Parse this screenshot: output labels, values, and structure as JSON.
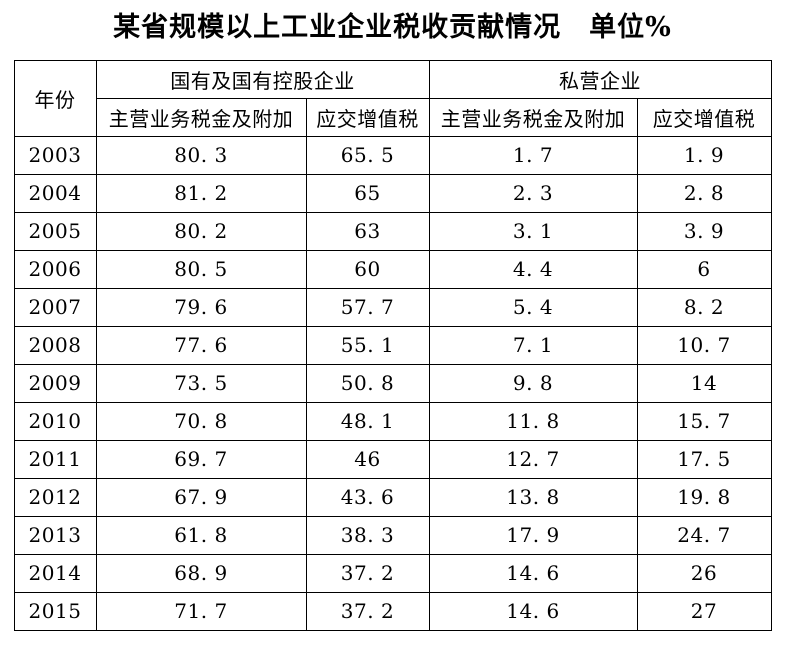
{
  "title": "某省规模以上工业企业税收贡献情况　单位%",
  "chart_data": {
    "type": "table",
    "title": "某省规模以上工业企业税收贡献情况",
    "unit_label": "单位%",
    "header": {
      "year": "年份",
      "groups": [
        {
          "label": "国有及国有控股企业",
          "subcolumns": [
            "主营业务税金及附加",
            "应交增值税"
          ]
        },
        {
          "label": "私营企业",
          "subcolumns": [
            "主营业务税金及附加",
            "应交增值税"
          ]
        }
      ]
    },
    "columns": [
      "年份",
      "国有及国有控股企业-主营业务税金及附加",
      "国有及国有控股企业-应交增值税",
      "私营企业-主营业务税金及附加",
      "私营企业-应交增值税"
    ],
    "rows": [
      {
        "year": "2003",
        "values": [
          80.3,
          65.5,
          1.7,
          1.9
        ]
      },
      {
        "year": "2004",
        "values": [
          81.2,
          65,
          2.3,
          2.8
        ]
      },
      {
        "year": "2005",
        "values": [
          80.2,
          63,
          3.1,
          3.9
        ]
      },
      {
        "year": "2006",
        "values": [
          80.5,
          60,
          4.4,
          6
        ]
      },
      {
        "year": "2007",
        "values": [
          79.6,
          57.7,
          5.4,
          8.2
        ]
      },
      {
        "year": "2008",
        "values": [
          77.6,
          55.1,
          7.1,
          10.7
        ]
      },
      {
        "year": "2009",
        "values": [
          73.5,
          50.8,
          9.8,
          14
        ]
      },
      {
        "year": "2010",
        "values": [
          70.8,
          48.1,
          11.8,
          15.7
        ]
      },
      {
        "year": "2011",
        "values": [
          69.7,
          46,
          12.7,
          17.5
        ]
      },
      {
        "year": "2012",
        "values": [
          67.9,
          43.6,
          13.8,
          19.8
        ]
      },
      {
        "year": "2013",
        "values": [
          61.8,
          38.3,
          17.9,
          24.7
        ]
      },
      {
        "year": "2014",
        "values": [
          68.9,
          37.2,
          14.6,
          26
        ]
      },
      {
        "year": "2015",
        "values": [
          71.7,
          37.2,
          14.6,
          27
        ]
      }
    ]
  }
}
